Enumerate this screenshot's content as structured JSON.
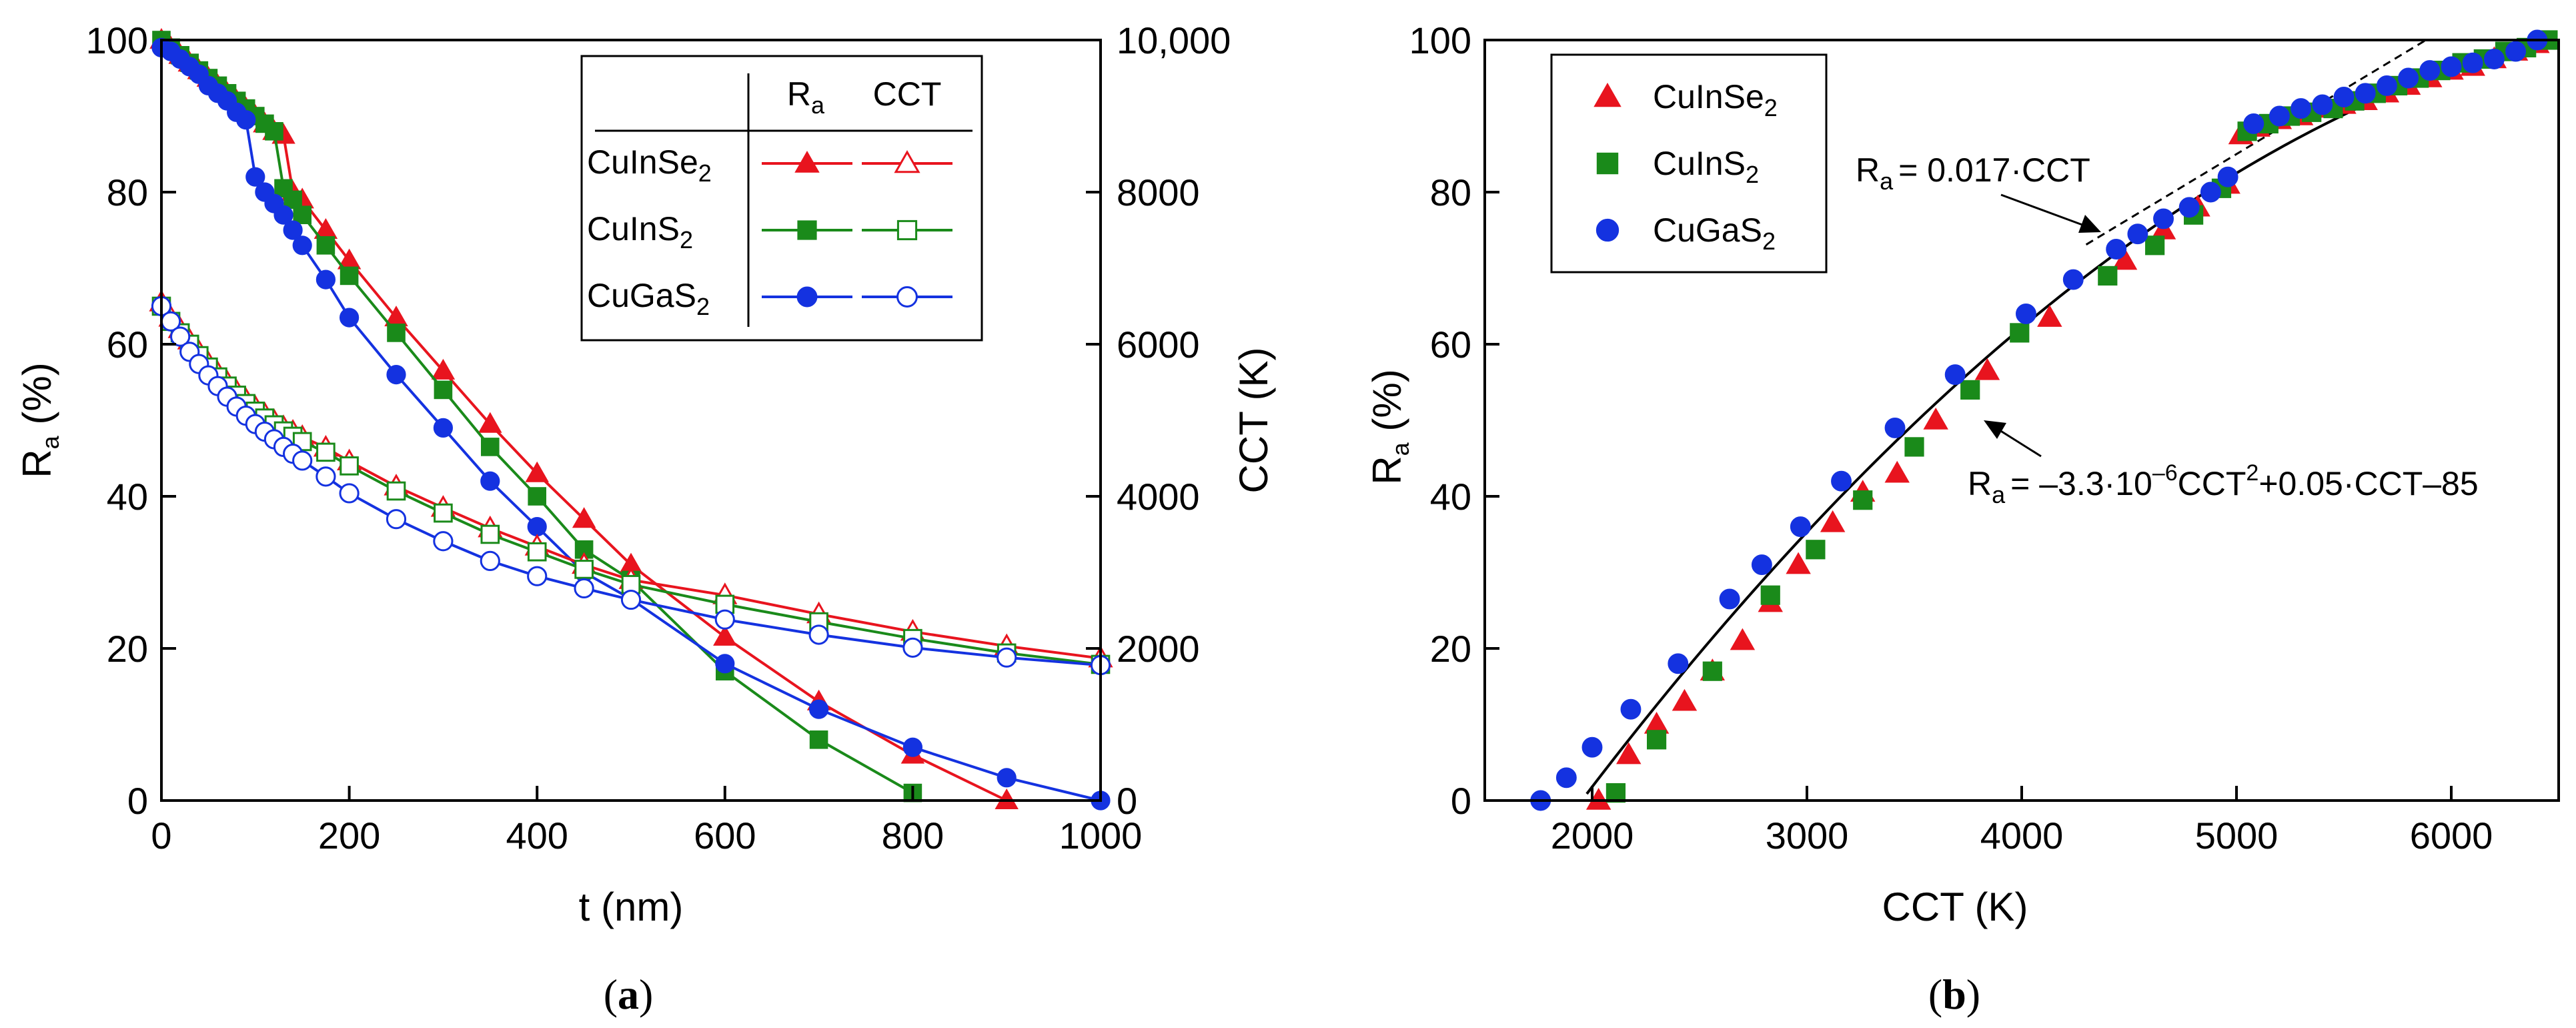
{
  "colors": {
    "cuinse2": "#e8141e",
    "cuins2": "#1a8a1a",
    "cugas2": "#1432e0"
  },
  "panels": {
    "a": "a",
    "b": "b"
  },
  "chart_data": [
    {
      "type": "line",
      "panel": "a",
      "xlabel": "t (nm)",
      "ylabel_left": {
        "main": "R",
        "sub": "a",
        "rest": " (%)"
      },
      "ylabel_right": "CCT (K)",
      "xlim": [
        0,
        1000
      ],
      "ylim_left": [
        0,
        100
      ],
      "ylim_right": [
        0,
        10000
      ],
      "xticks": [
        {
          "v": 0,
          "label": "0"
        },
        {
          "v": 200,
          "label": "200"
        },
        {
          "v": 400,
          "label": "400"
        },
        {
          "v": 600,
          "label": "600"
        },
        {
          "v": 800,
          "label": "800"
        },
        {
          "v": 1000,
          "label": "1000"
        }
      ],
      "yticks_left": [
        {
          "v": 0,
          "label": "0"
        },
        {
          "v": 20,
          "label": "20"
        },
        {
          "v": 40,
          "label": "40"
        },
        {
          "v": 60,
          "label": "60"
        },
        {
          "v": 80,
          "label": "80"
        },
        {
          "v": 100,
          "label": "100"
        }
      ],
      "yticks_right": [
        {
          "v": 0,
          "label": "0"
        },
        {
          "v": 2000,
          "label": "2000"
        },
        {
          "v": 4000,
          "label": "4000"
        },
        {
          "v": 6000,
          "label": "6000"
        },
        {
          "v": 8000,
          "label": "8000"
        },
        {
          "v": 10000,
          "label": "10,000"
        }
      ],
      "legend": {
        "position": "top-right",
        "header_ra": {
          "main": "R",
          "sub": "a"
        },
        "header_cct": "CCT",
        "entries": [
          {
            "main": "CuInSe",
            "sub": "2"
          },
          {
            "main": "CuInS",
            "sub": "2"
          },
          {
            "main": "CuGaS",
            "sub": "2"
          }
        ]
      },
      "series": [
        {
          "name": "CuInSe2 Ra",
          "material": "CuInSe2",
          "axis": "left",
          "marker": "triangle",
          "filled": true,
          "colorKey": "cuinse2",
          "x": [
            0,
            10,
            20,
            30,
            40,
            50,
            60,
            70,
            80,
            90,
            100,
            110,
            120,
            130,
            140,
            150,
            175,
            200,
            250,
            300,
            350,
            400,
            450,
            500,
            600,
            700,
            800,
            900
          ],
          "y": [
            100,
            99,
            98,
            97,
            96,
            95,
            94,
            93,
            92,
            91,
            90,
            89,
            88,
            87.5,
            80,
            79,
            75,
            71,
            63.5,
            56.5,
            49.5,
            43,
            37,
            31,
            21.5,
            13,
            6,
            0
          ]
        },
        {
          "name": "CuInS2 Ra",
          "material": "CuInS2",
          "axis": "left",
          "marker": "square",
          "filled": true,
          "colorKey": "cuins2",
          "x": [
            0,
            10,
            20,
            30,
            40,
            50,
            60,
            70,
            80,
            90,
            100,
            110,
            120,
            130,
            140,
            150,
            175,
            200,
            250,
            300,
            350,
            400,
            450,
            500,
            600,
            700,
            800
          ],
          "y": [
            100,
            99,
            98,
            97,
            96,
            95,
            94,
            93,
            92,
            91,
            90,
            89,
            88,
            80.5,
            79,
            77,
            73,
            69,
            61.5,
            54,
            46.5,
            40,
            33,
            29,
            17,
            8,
            1
          ]
        },
        {
          "name": "CuGaS2 Ra",
          "material": "CuGaS2",
          "axis": "left",
          "marker": "circle",
          "filled": true,
          "colorKey": "cugas2",
          "x": [
            0,
            10,
            20,
            30,
            40,
            50,
            60,
            70,
            80,
            90,
            100,
            110,
            120,
            130,
            140,
            150,
            175,
            200,
            250,
            300,
            350,
            400,
            450,
            500,
            600,
            700,
            800,
            900,
            1000
          ],
          "y": [
            99,
            98.5,
            97.5,
            96.5,
            95.5,
            94,
            93,
            92,
            90.5,
            89.5,
            82,
            80,
            78.5,
            77,
            75,
            73,
            68.5,
            63.5,
            56,
            49,
            42,
            36,
            30,
            26.5,
            18,
            12,
            7,
            3,
            0
          ]
        },
        {
          "name": "CuInSe2 CCT",
          "material": "CuInSe2",
          "axis": "right",
          "marker": "triangle",
          "filled": false,
          "colorKey": "cuinse2",
          "x": [
            0,
            10,
            20,
            30,
            40,
            50,
            60,
            70,
            80,
            90,
            100,
            110,
            120,
            130,
            140,
            150,
            175,
            200,
            250,
            300,
            350,
            400,
            450,
            500,
            600,
            700,
            800,
            900,
            1000
          ],
          "y": [
            6550,
            6350,
            6200,
            6050,
            5900,
            5750,
            5620,
            5500,
            5380,
            5270,
            5170,
            5080,
            4990,
            4910,
            4850,
            4780,
            4640,
            4460,
            4130,
            3850,
            3580,
            3340,
            3100,
            2900,
            2700,
            2450,
            2220,
            2030,
            1870
          ]
        },
        {
          "name": "CuInS2 CCT",
          "material": "CuInS2",
          "axis": "right",
          "marker": "square",
          "filled": false,
          "colorKey": "cuins2",
          "x": [
            0,
            10,
            20,
            30,
            40,
            50,
            60,
            70,
            80,
            90,
            100,
            110,
            120,
            130,
            140,
            150,
            175,
            200,
            250,
            300,
            350,
            400,
            450,
            500,
            600,
            700,
            800,
            900,
            1000
          ],
          "y": [
            6500,
            6300,
            6150,
            6000,
            5850,
            5700,
            5570,
            5450,
            5330,
            5220,
            5120,
            5030,
            4940,
            4860,
            4790,
            4720,
            4580,
            4400,
            4070,
            3780,
            3500,
            3270,
            3040,
            2840,
            2580,
            2350,
            2130,
            1940,
            1790
          ]
        },
        {
          "name": "CuGaS2 CCT",
          "material": "CuGaS2",
          "axis": "right",
          "marker": "circle",
          "filled": false,
          "colorKey": "cugas2",
          "x": [
            0,
            10,
            20,
            30,
            40,
            50,
            60,
            70,
            80,
            90,
            100,
            110,
            120,
            130,
            140,
            150,
            175,
            200,
            250,
            300,
            350,
            400,
            450,
            500,
            600,
            700,
            800,
            900,
            1000
          ],
          "y": [
            6500,
            6300,
            6100,
            5900,
            5740,
            5590,
            5450,
            5310,
            5180,
            5060,
            4950,
            4850,
            4750,
            4650,
            4560,
            4470,
            4260,
            4040,
            3700,
            3410,
            3150,
            2950,
            2790,
            2640,
            2380,
            2180,
            2010,
            1880,
            1780
          ]
        }
      ]
    },
    {
      "type": "scatter",
      "panel": "b",
      "xlabel": "CCT (K)",
      "ylabel": {
        "main": "R",
        "sub": "a",
        "rest": " (%)"
      },
      "xlim": [
        1500,
        6500
      ],
      "ylim": [
        0,
        100
      ],
      "xticks": [
        {
          "v": 2000,
          "label": "2000"
        },
        {
          "v": 3000,
          "label": "3000"
        },
        {
          "v": 4000,
          "label": "4000"
        },
        {
          "v": 5000,
          "label": "5000"
        },
        {
          "v": 6000,
          "label": "6000"
        }
      ],
      "yticks": [
        {
          "v": 0,
          "label": "0"
        },
        {
          "v": 20,
          "label": "20"
        },
        {
          "v": 40,
          "label": "40"
        },
        {
          "v": 60,
          "label": "60"
        },
        {
          "v": 80,
          "label": "80"
        },
        {
          "v": 100,
          "label": "100"
        }
      ],
      "legend": {
        "position": "top-left",
        "entries": [
          {
            "main": "CuInSe",
            "sub": "2"
          },
          {
            "main": "CuInS",
            "sub": "2"
          },
          {
            "main": "CuGaS",
            "sub": "2"
          }
        ]
      },
      "annotations": {
        "linear": {
          "pre": "R",
          "sub": "a",
          "text": "= 0.017·CCT"
        },
        "quadratic": {
          "pre": "R",
          "sub": "a",
          "t1": "= –3.3·10",
          "sup1": "–6",
          "t2": "CCT",
          "sup2": "2",
          "t3": "+0.05·CCT–85"
        }
      },
      "fits": {
        "linear": {
          "slope": 0.017,
          "intercept": 0,
          "xrange": [
            4300,
            6300
          ]
        },
        "quadratic": {
          "a": -3.3e-06,
          "b": 0.05,
          "c": -85,
          "xrange": [
            1900,
            6500
          ]
        }
      },
      "series": [
        {
          "name": "CuInSe2",
          "marker": "triangle",
          "colorKey": "cuinse2",
          "x": [
            2030,
            2170,
            2300,
            2430,
            2560,
            2700,
            2830,
            2960,
            3120,
            3260,
            3420,
            3600,
            3840,
            4130,
            4480,
            4660,
            4820,
            4960,
            5020,
            5100,
            5200,
            5300,
            5400,
            5500,
            5600,
            5700,
            5800,
            5900,
            6000,
            6100,
            6200,
            6300,
            6400
          ],
          "y": [
            0,
            6,
            10,
            13,
            17,
            21,
            26,
            31,
            36.5,
            40.5,
            43,
            50,
            56.5,
            63.5,
            71,
            75,
            78,
            81,
            87.5,
            88.5,
            89.5,
            90,
            91,
            91.5,
            92,
            93,
            94,
            95,
            96,
            96.5,
            97.5,
            98.5,
            99.5
          ]
        },
        {
          "name": "CuInS2",
          "marker": "square",
          "colorKey": "cuins2",
          "x": [
            2110,
            2300,
            2560,
            2830,
            3040,
            3260,
            3500,
            3760,
            3990,
            4400,
            4620,
            4800,
            4930,
            5050,
            5150,
            5250,
            5350,
            5450,
            5550,
            5650,
            5750,
            5850,
            5950,
            6050,
            6150,
            6250,
            6350,
            6450
          ],
          "y": [
            1,
            8,
            17,
            27,
            33,
            39.5,
            46.5,
            54,
            61.5,
            69,
            73,
            77,
            80.5,
            88,
            89,
            90,
            90.5,
            91,
            92,
            93,
            94,
            95,
            96,
            97,
            97.5,
            98.5,
            99,
            100
          ]
        },
        {
          "name": "CuGaS2",
          "marker": "circle",
          "colorKey": "cugas2",
          "x": [
            1760,
            1880,
            2000,
            2180,
            2400,
            2640,
            2790,
            2970,
            3160,
            3410,
            3690,
            4020,
            4240,
            4440,
            4540,
            4660,
            4780,
            4880,
            4960,
            5080,
            5200,
            5300,
            5400,
            5500,
            5600,
            5700,
            5800,
            5900,
            6000,
            6100,
            6200,
            6300,
            6400
          ],
          "y": [
            0,
            3,
            7,
            12,
            18,
            26.5,
            31,
            36,
            42,
            49,
            56,
            64,
            68.5,
            72.5,
            74.5,
            76.5,
            78,
            80,
            82,
            89,
            90,
            91,
            91.5,
            92.5,
            93,
            94,
            95,
            96,
            96.5,
            97,
            97.5,
            98.5,
            100
          ]
        }
      ]
    }
  ]
}
